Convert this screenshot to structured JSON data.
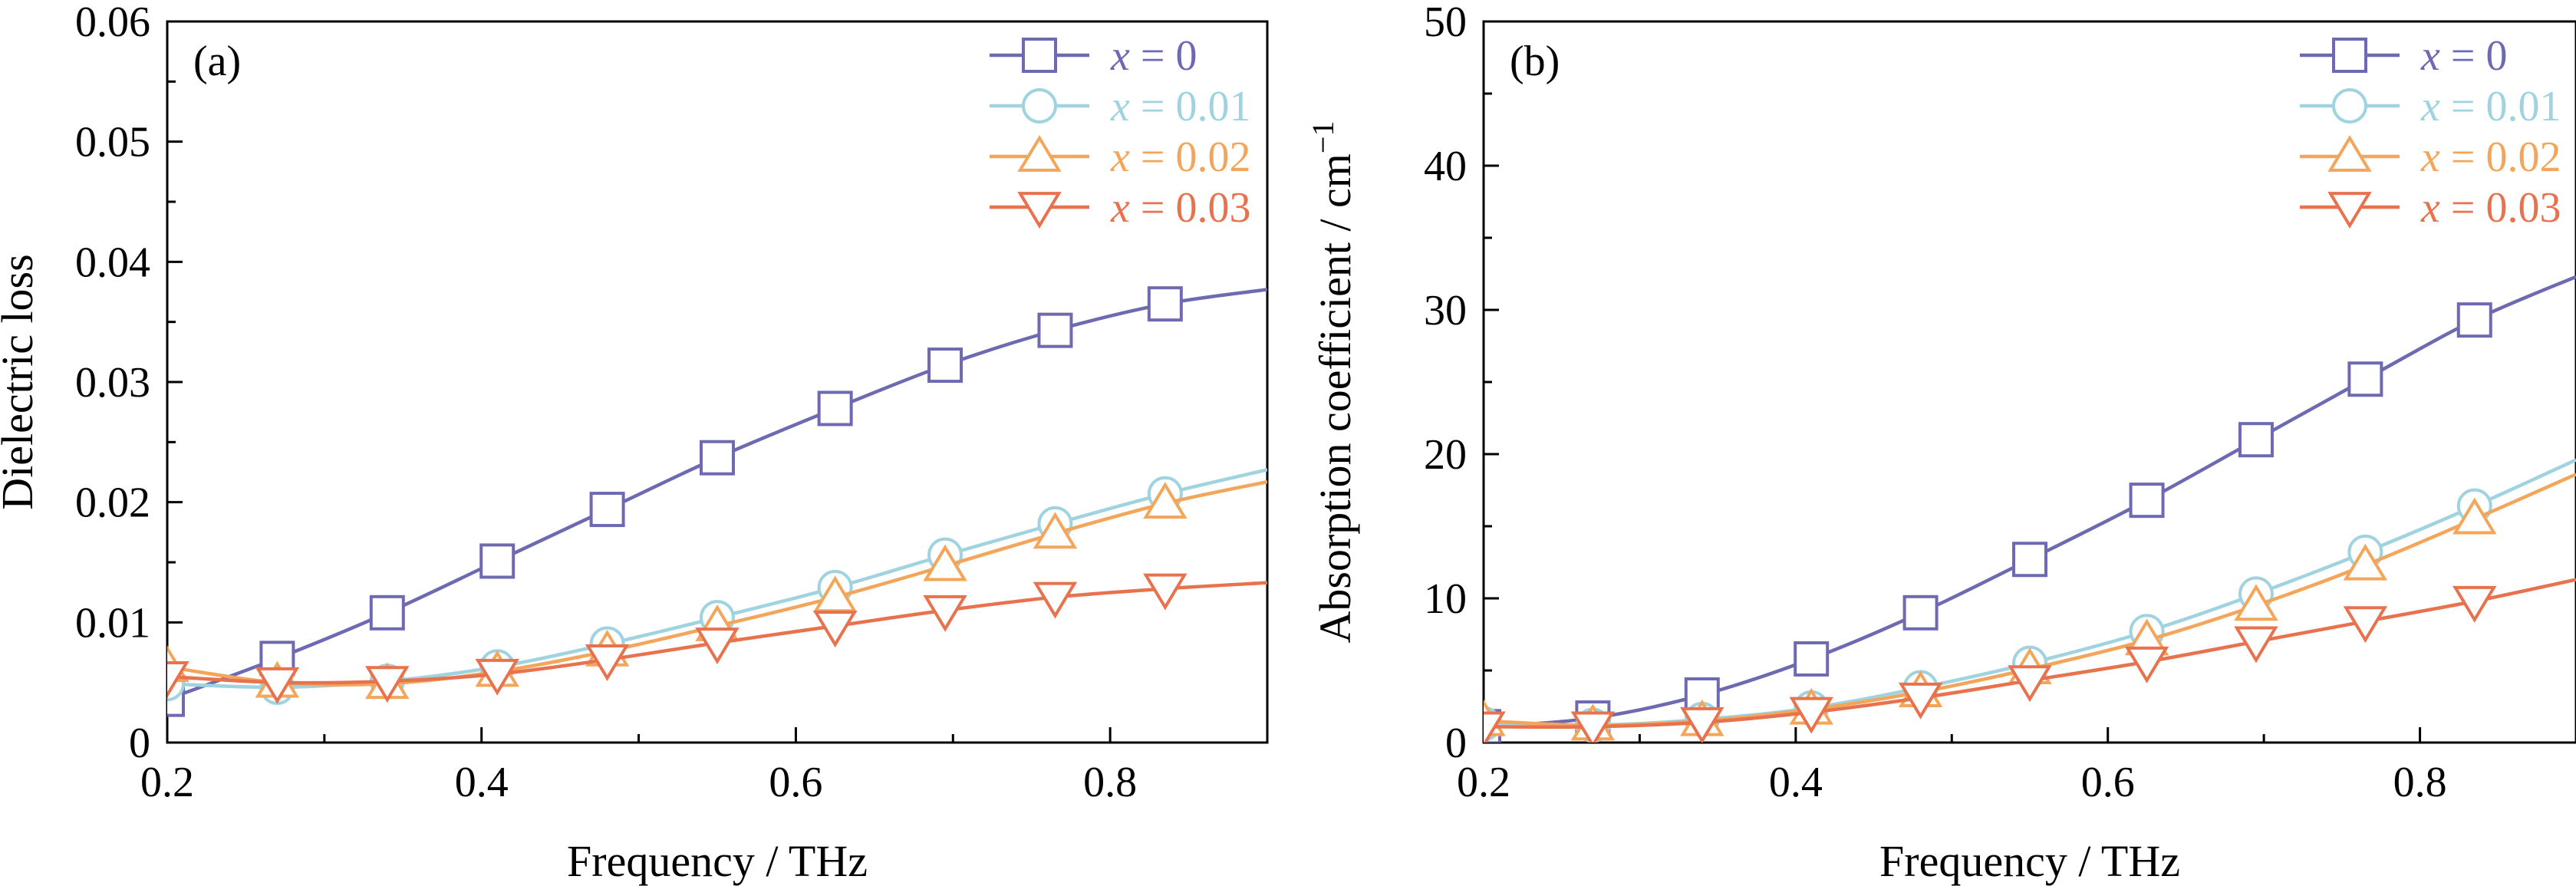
{
  "chart_data": [
    {
      "panel_label": "(a)",
      "type": "line",
      "xlabel": "Frequency / THz",
      "ylabel": "Dielectric loss",
      "xlim": [
        0.2,
        0.9
      ],
      "ylim": [
        0,
        0.06
      ],
      "x_ticks": [
        0.2,
        0.4,
        0.6,
        0.8
      ],
      "x_tick_labels": [
        "0.2",
        "0.4",
        "0.6",
        "0.8"
      ],
      "y_ticks": [
        0,
        0.01,
        0.02,
        0.03,
        0.04,
        0.05,
        0.06
      ],
      "y_tick_labels": [
        "0",
        "0.01",
        "0.02",
        "0.03",
        "0.04",
        "0.05",
        "0.06"
      ],
      "legend_position": "top-right",
      "grid": false,
      "x_markers": [
        0.2,
        0.27,
        0.34,
        0.41,
        0.48,
        0.55,
        0.625,
        0.695,
        0.765,
        0.835
      ],
      "series": [
        {
          "name": "x = 0",
          "color": "#6e6ab2",
          "marker": "square",
          "curve": [
            [
              0.2,
              0.0036
            ],
            [
              0.27,
              0.007
            ],
            [
              0.34,
              0.0108
            ],
            [
              0.41,
              0.0151
            ],
            [
              0.48,
              0.0194
            ],
            [
              0.55,
              0.0237
            ],
            [
              0.625,
              0.0278
            ],
            [
              0.695,
              0.0314
            ],
            [
              0.765,
              0.0343
            ],
            [
              0.835,
              0.0365
            ],
            [
              0.9,
              0.0377
            ]
          ],
          "markers": [
            0.0036,
            0.007,
            0.0108,
            0.0151,
            0.0194,
            0.0237,
            0.0278,
            0.0314,
            0.0343,
            0.0365
          ]
        },
        {
          "name": "x = 0.01",
          "color": "#9fd3df",
          "marker": "circle",
          "curve": [
            [
              0.2,
              0.0049
            ],
            [
              0.27,
              0.0046
            ],
            [
              0.34,
              0.0051
            ],
            [
              0.41,
              0.0063
            ],
            [
              0.48,
              0.0082
            ],
            [
              0.55,
              0.0104
            ],
            [
              0.625,
              0.0129
            ],
            [
              0.695,
              0.0156
            ],
            [
              0.765,
              0.0182
            ],
            [
              0.835,
              0.0207
            ],
            [
              0.9,
              0.0227
            ]
          ],
          "markers": [
            0.0049,
            0.0046,
            0.0051,
            0.0063,
            0.0082,
            0.0104,
            0.0129,
            0.0156,
            0.0182,
            0.0207
          ]
        },
        {
          "name": "x = 0.02",
          "color": "#f3a65a",
          "marker": "triangle-up",
          "curve": [
            [
              0.2,
              0.0063
            ],
            [
              0.27,
              0.005
            ],
            [
              0.34,
              0.0049
            ],
            [
              0.41,
              0.0059
            ],
            [
              0.48,
              0.0076
            ],
            [
              0.55,
              0.0097
            ],
            [
              0.625,
              0.0121
            ],
            [
              0.695,
              0.0147
            ],
            [
              0.765,
              0.0174
            ],
            [
              0.835,
              0.0199
            ],
            [
              0.9,
              0.0217
            ]
          ],
          "markers": [
            0.0063,
            0.005,
            0.0049,
            0.0059,
            0.0076,
            0.0097,
            0.0121,
            0.0147,
            0.0174,
            0.0199
          ]
        },
        {
          "name": "x = 0.03",
          "color": "#e8724e",
          "marker": "triangle-down",
          "curve": [
            [
              0.2,
              0.0055
            ],
            [
              0.27,
              0.005
            ],
            [
              0.34,
              0.0051
            ],
            [
              0.41,
              0.0057
            ],
            [
              0.48,
              0.0069
            ],
            [
              0.55,
              0.0083
            ],
            [
              0.625,
              0.0097
            ],
            [
              0.695,
              0.011
            ],
            [
              0.765,
              0.0121
            ],
            [
              0.835,
              0.0128
            ],
            [
              0.9,
              0.0133
            ]
          ],
          "markers": [
            0.0055,
            0.005,
            0.0051,
            0.0057,
            0.0069,
            0.0083,
            0.0097,
            0.011,
            0.0121,
            0.0128
          ]
        }
      ]
    },
    {
      "panel_label": "(b)",
      "type": "line",
      "xlabel": "Frequency / THz",
      "ylabel": "Absorption coefficient / cm",
      "ylabel_superscript": "−1",
      "xlim": [
        0.2,
        0.9
      ],
      "ylim": [
        0,
        50
      ],
      "x_ticks": [
        0.2,
        0.4,
        0.6,
        0.8
      ],
      "x_tick_labels": [
        "0.2",
        "0.4",
        "0.6",
        "0.8"
      ],
      "y_ticks": [
        0,
        10,
        20,
        30,
        40,
        50
      ],
      "y_tick_labels": [
        "0",
        "10",
        "20",
        "30",
        "40",
        "50"
      ],
      "legend_position": "top-right",
      "grid": false,
      "x_markers": [
        0.2,
        0.27,
        0.34,
        0.41,
        0.48,
        0.55,
        0.625,
        0.695,
        0.765,
        0.835
      ],
      "series": [
        {
          "name": "x = 0",
          "color": "#6e6ab2",
          "marker": "square",
          "curve": [
            [
              0.2,
              1.1
            ],
            [
              0.27,
              1.7
            ],
            [
              0.34,
              3.3
            ],
            [
              0.41,
              5.8
            ],
            [
              0.48,
              9.0
            ],
            [
              0.55,
              12.7
            ],
            [
              0.625,
              16.8
            ],
            [
              0.695,
              21.0
            ],
            [
              0.765,
              25.2
            ],
            [
              0.835,
              29.3
            ],
            [
              0.9,
              32.3
            ]
          ],
          "markers": [
            1.1,
            1.7,
            3.3,
            5.8,
            9.0,
            12.7,
            16.8,
            21.0,
            25.2,
            29.3
          ]
        },
        {
          "name": "x = 0.01",
          "color": "#9fd3df",
          "marker": "circle",
          "curve": [
            [
              0.2,
              1.3
            ],
            [
              0.27,
              1.2
            ],
            [
              0.34,
              1.6
            ],
            [
              0.41,
              2.4
            ],
            [
              0.48,
              3.8
            ],
            [
              0.55,
              5.5
            ],
            [
              0.625,
              7.7
            ],
            [
              0.695,
              10.3
            ],
            [
              0.765,
              13.2
            ],
            [
              0.835,
              16.4
            ],
            [
              0.9,
              19.6
            ]
          ],
          "markers": [
            1.3,
            1.2,
            1.6,
            2.4,
            3.8,
            5.5,
            7.7,
            10.3,
            13.2,
            16.4
          ]
        },
        {
          "name": "x = 0.02",
          "color": "#f3a65a",
          "marker": "triangle-up",
          "curve": [
            [
              0.2,
              1.5
            ],
            [
              0.27,
              1.2
            ],
            [
              0.34,
              1.5
            ],
            [
              0.41,
              2.3
            ],
            [
              0.48,
              3.5
            ],
            [
              0.55,
              5.1
            ],
            [
              0.625,
              7.1
            ],
            [
              0.695,
              9.5
            ],
            [
              0.765,
              12.3
            ],
            [
              0.835,
              15.5
            ],
            [
              0.9,
              18.6
            ]
          ],
          "markers": [
            1.5,
            1.2,
            1.5,
            2.3,
            3.5,
            5.1,
            7.1,
            9.5,
            12.3,
            15.5
          ]
        },
        {
          "name": "x = 0.03",
          "color": "#e8724e",
          "marker": "triangle-down",
          "curve": [
            [
              0.2,
              1.1
            ],
            [
              0.27,
              1.1
            ],
            [
              0.34,
              1.4
            ],
            [
              0.41,
              2.1
            ],
            [
              0.48,
              3.1
            ],
            [
              0.55,
              4.3
            ],
            [
              0.625,
              5.6
            ],
            [
              0.695,
              7.0
            ],
            [
              0.765,
              8.4
            ],
            [
              0.835,
              9.8
            ],
            [
              0.9,
              11.3
            ]
          ],
          "markers": [
            1.1,
            1.1,
            1.4,
            2.1,
            3.1,
            4.3,
            5.6,
            7.0,
            8.4,
            9.8
          ]
        }
      ]
    }
  ]
}
